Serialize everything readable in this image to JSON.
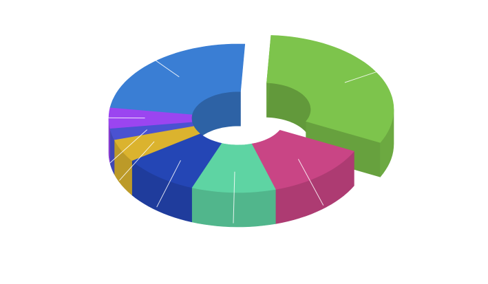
{
  "chart_data": {
    "type": "pie",
    "subtype": "3d-donut",
    "title": "",
    "legend": "none",
    "exploded_slice": "green",
    "slices": [
      {
        "color": "#7dc44c",
        "value": 31.5,
        "exploded": true
      },
      {
        "color": "#c94585",
        "value": 13.0
      },
      {
        "color": "#5ed4a3",
        "value": 10.5
      },
      {
        "color": "#2446b5",
        "value": 9.5
      },
      {
        "color": "#dbb32e",
        "value": 5.0
      },
      {
        "color": "#4a52d1",
        "value": 2.5
      },
      {
        "color": "#9b45f0",
        "value": 4.5
      },
      {
        "color": "#3a7ed4",
        "value": 23.5
      }
    ]
  }
}
